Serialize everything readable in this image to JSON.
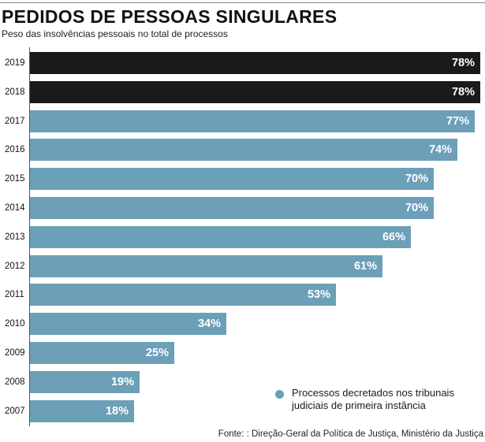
{
  "header": {
    "title": "PEDIDOS DE PESSOAS SINGULARES",
    "subtitle": "Peso das insolvências pessoais no total de processos"
  },
  "legend": {
    "label": "Processos decretados nos tribunais judiciais de primeira instância"
  },
  "source": "Fonte: : Direção-Geral da Política de Justiça, Ministério da Justiça",
  "colors": {
    "primary": "#6c9fb8",
    "highlight": "#1a1a1a"
  },
  "chart_data": {
    "type": "bar",
    "orientation": "horizontal",
    "title": "PEDIDOS DE PESSOAS SINGULARES",
    "subtitle": "Peso das insolvências pessoais no total de processos",
    "xlabel": "",
    "ylabel": "",
    "xlim": [
      0,
      78
    ],
    "grid": false,
    "legend_position": "bottom-right",
    "unit": "%",
    "categories": [
      "2019",
      "2018",
      "2017",
      "2016",
      "2015",
      "2014",
      "2013",
      "2012",
      "2011",
      "2010",
      "2009",
      "2008",
      "2007"
    ],
    "series": [
      {
        "name": "Processos decretados nos tribunais judiciais de primeira instância",
        "values": [
          78,
          78,
          77,
          74,
          70,
          70,
          66,
          61,
          53,
          34,
          25,
          19,
          18
        ],
        "labels": [
          "78%",
          "78%",
          "77%",
          "74%",
          "70%",
          "70%",
          "66%",
          "61%",
          "53%",
          "34%",
          "25%",
          "19%",
          "18%"
        ],
        "highlighted": [
          "2019",
          "2018"
        ]
      }
    ]
  }
}
